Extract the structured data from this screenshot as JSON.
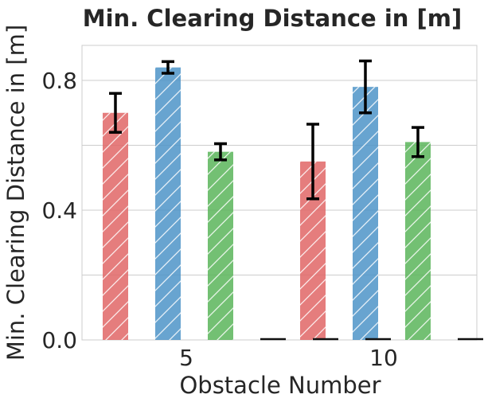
{
  "chart_data": {
    "type": "bar",
    "title": "Min. Clearing Distance in [m]",
    "xlabel": "Obstacle Number",
    "ylabel": "Min. Clearing Distance in [m]",
    "categories": [
      "5",
      "10"
    ],
    "ylim": [
      0,
      0.92
    ],
    "yticks": [
      0.0,
      0.4,
      0.8
    ],
    "ytick_labels": [
      "0.0",
      "0.4",
      "0.8"
    ],
    "grid": true,
    "hatch": "diagonal",
    "series": [
      {
        "color": "#e06666",
        "values": [
          0.7,
          0.55
        ],
        "error": [
          0.06,
          0.115
        ]
      },
      {
        "color": "#4d94c8",
        "values": [
          0.84,
          0.78
        ],
        "error": [
          0.018,
          0.08
        ]
      },
      {
        "color": "#5bb55b",
        "values": [
          0.58,
          0.61
        ],
        "error": [
          0.025,
          0.045
        ]
      },
      {
        "color": "#cc3333",
        "values": [
          0.0,
          0.0
        ],
        "error": [
          0,
          0
        ]
      },
      {
        "color": "#2b6fa8",
        "values": [
          0.0,
          0.0
        ],
        "error": [
          0,
          0
        ]
      },
      {
        "color": "#2e8b2e",
        "values": [
          0.0,
          0.0
        ],
        "error": [
          0,
          0
        ]
      }
    ]
  }
}
